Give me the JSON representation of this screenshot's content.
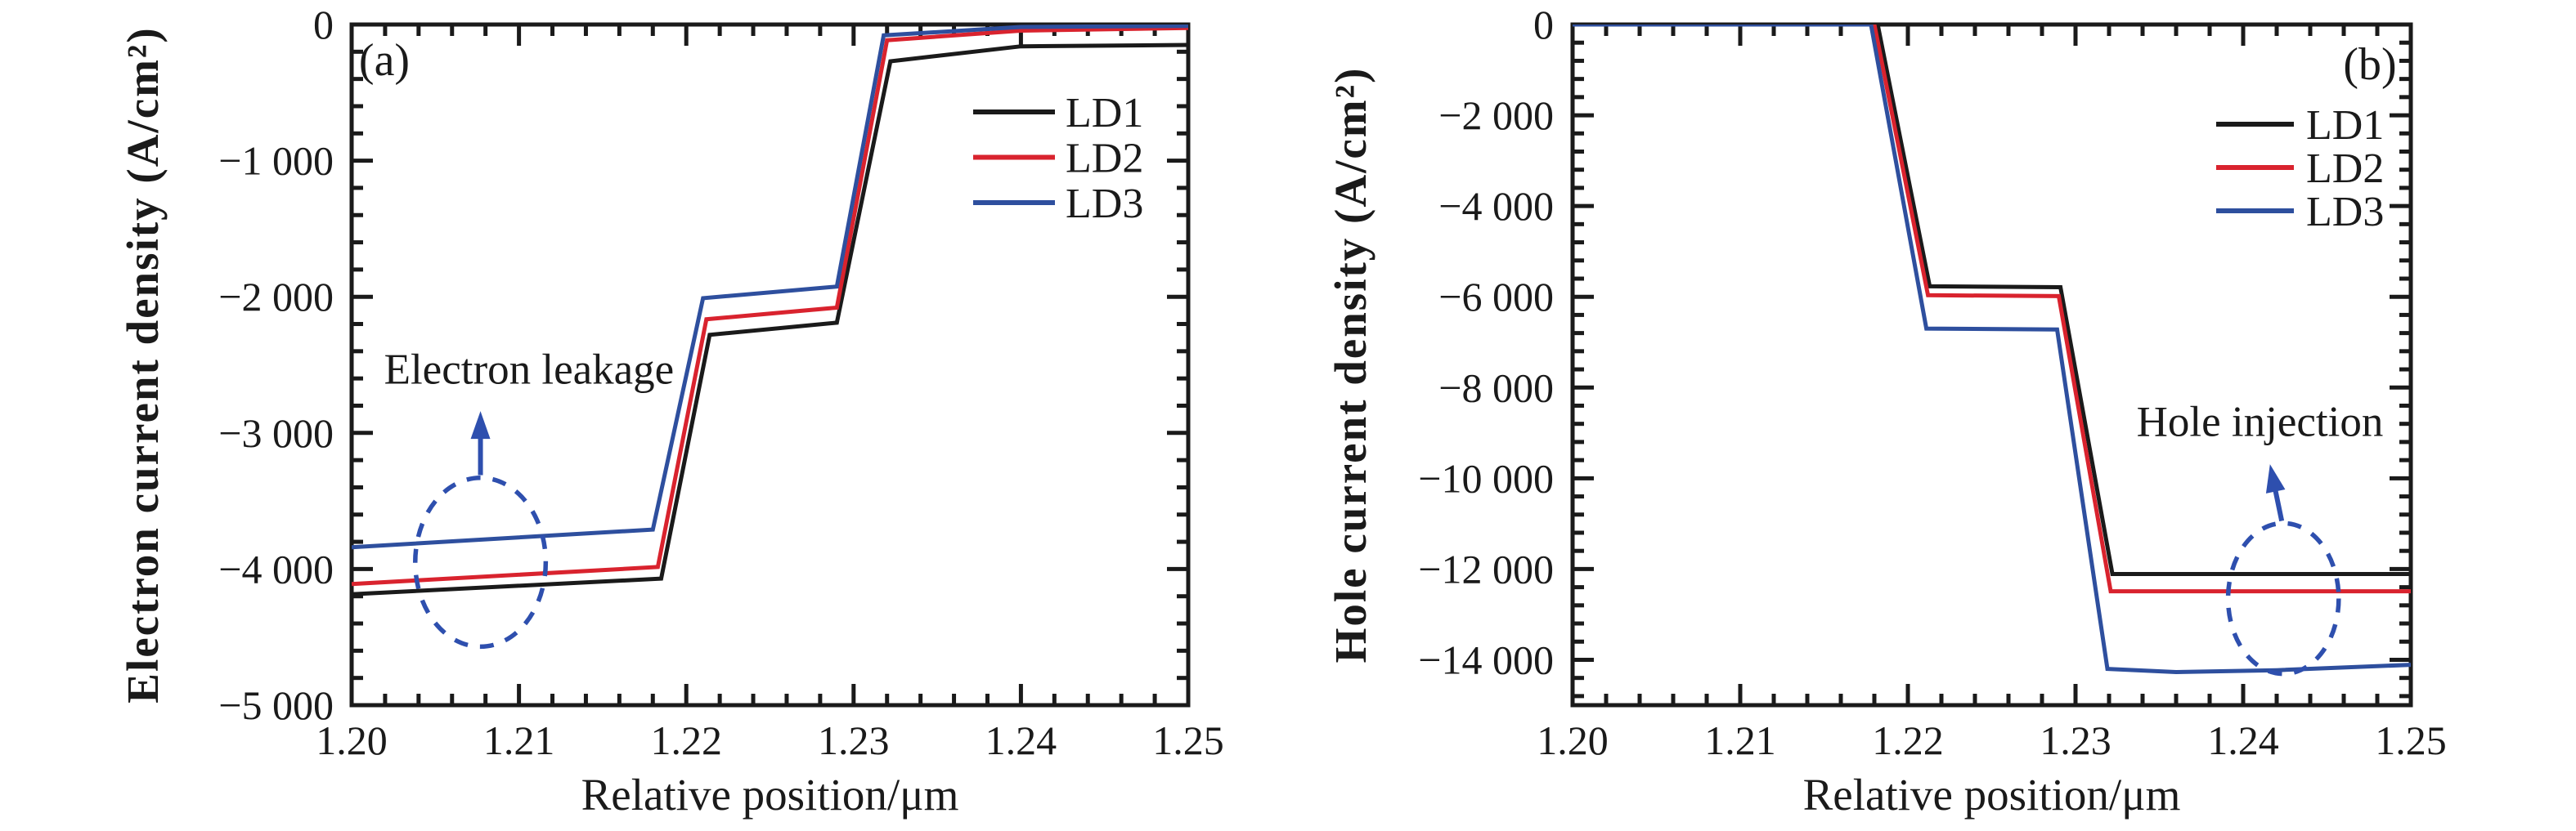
{
  "figure": {
    "background": "#ffffff",
    "text_color": "#1a1a1a"
  },
  "chart_data": [
    {
      "type": "line",
      "panel_label": "(a)",
      "xlabel": "Relative position/μm",
      "ylabel": "Electron current density (A/cm²)",
      "xlim": [
        1.2,
        1.25
      ],
      "ylim": [
        -5000,
        0
      ],
      "x_ticks": [
        1.2,
        1.21,
        1.22,
        1.23,
        1.24,
        1.25
      ],
      "x_tick_labels": [
        "1.20",
        "1.21",
        "1.22",
        "1.23",
        "1.24",
        "1.25"
      ],
      "y_ticks": [
        0,
        -1000,
        -2000,
        -3000,
        -4000,
        -5000
      ],
      "y_tick_labels": [
        "0",
        "−1 000",
        "−2 000",
        "−3 000",
        "−4 000",
        "−5 000"
      ],
      "x_minor_step": 0.002,
      "y_minor_step": 200,
      "grid": false,
      "legend_position": "upper-right",
      "legend": [
        {
          "label": "LD1",
          "color": "#1a1a1a"
        },
        {
          "label": "LD2",
          "color": "#d9232e"
        },
        {
          "label": "LD3",
          "color": "#2e4f9e"
        }
      ],
      "series": [
        {
          "name": "LD1",
          "color": "#1a1a1a",
          "points": [
            [
              1.2,
              -4185
            ],
            [
              1.2185,
              -4070
            ],
            [
              1.2214,
              -2280
            ],
            [
              1.229,
              -2190
            ],
            [
              1.2322,
              -270
            ],
            [
              1.24,
              -160
            ],
            [
              1.25,
              -150
            ]
          ]
        },
        {
          "name": "LD2",
          "color": "#d9232e",
          "points": [
            [
              1.2,
              -4110
            ],
            [
              1.2183,
              -3985
            ],
            [
              1.2212,
              -2165
            ],
            [
              1.229,
              -2080
            ],
            [
              1.232,
              -115
            ],
            [
              1.24,
              -45
            ],
            [
              1.25,
              -25
            ]
          ]
        },
        {
          "name": "LD3",
          "color": "#2e4f9e",
          "points": [
            [
              1.2,
              -3840
            ],
            [
              1.218,
              -3710
            ],
            [
              1.221,
              -2010
            ],
            [
              1.229,
              -1925
            ],
            [
              1.2318,
              -80
            ],
            [
              1.24,
              -18
            ],
            [
              1.25,
              -10
            ]
          ]
        }
      ],
      "annotation": {
        "text": "Electron leakage",
        "color": "#2e4fae",
        "text_pos": [
          1.2106,
          -2530
        ],
        "arrow": {
          "from": [
            1.2077,
            -3310
          ],
          "to": [
            1.2077,
            -2840
          ]
        },
        "ellipse": {
          "center": [
            1.2077,
            -3950
          ],
          "rx": 0.0039,
          "ry": 620
        }
      }
    },
    {
      "type": "line",
      "panel_label": "(b)",
      "xlabel": "Relative position/μm",
      "ylabel": "Hole current density (A/cm²)",
      "xlim": [
        1.2,
        1.25
      ],
      "ylim": [
        -15000,
        0
      ],
      "x_ticks": [
        1.2,
        1.21,
        1.22,
        1.23,
        1.24,
        1.25
      ],
      "x_tick_labels": [
        "1.20",
        "1.21",
        "1.22",
        "1.23",
        "1.24",
        "1.25"
      ],
      "y_ticks": [
        0,
        -2000,
        -4000,
        -6000,
        -8000,
        -10000,
        -12000,
        -14000
      ],
      "y_tick_labels": [
        "0",
        "−2 000",
        "−4 000",
        "−6 000",
        "−8 000",
        "−10 000",
        "−12 000",
        "−14 000"
      ],
      "x_minor_step": 0.002,
      "y_minor_step": 400,
      "grid": false,
      "legend_position": "upper-right",
      "legend": [
        {
          "label": "LD1",
          "color": "#1a1a1a"
        },
        {
          "label": "LD2",
          "color": "#d9232e"
        },
        {
          "label": "LD3",
          "color": "#2e4f9e"
        }
      ],
      "series": [
        {
          "name": "LD1",
          "color": "#1a1a1a",
          "points": [
            [
              1.2,
              0
            ],
            [
              1.2182,
              0
            ],
            [
              1.2213,
              -5770
            ],
            [
              1.2291,
              -5790
            ],
            [
              1.2322,
              -12110
            ],
            [
              1.25,
              -12110
            ]
          ]
        },
        {
          "name": "LD2",
          "color": "#d9232e",
          "points": [
            [
              1.2,
              0
            ],
            [
              1.218,
              0
            ],
            [
              1.2212,
              -5965
            ],
            [
              1.229,
              -5985
            ],
            [
              1.2321,
              -12490
            ],
            [
              1.25,
              -12490
            ]
          ]
        },
        {
          "name": "LD3",
          "color": "#2e4f9e",
          "points": [
            [
              1.2,
              0
            ],
            [
              1.2178,
              0
            ],
            [
              1.2211,
              -6700
            ],
            [
              1.2289,
              -6720
            ],
            [
              1.2319,
              -14200
            ],
            [
              1.236,
              -14270
            ],
            [
              1.242,
              -14230
            ],
            [
              1.25,
              -14110
            ]
          ]
        }
      ],
      "annotation": {
        "text": "Hole injection",
        "color": "#2e4fae",
        "text_pos": [
          1.241,
          -8740
        ],
        "arrow": {
          "from": [
            1.2423,
            -10940
          ],
          "to": [
            1.2416,
            -9690
          ]
        },
        "ellipse": {
          "center": [
            1.2424,
            -12650
          ],
          "rx": 0.0033,
          "ry": 1660
        }
      }
    }
  ]
}
